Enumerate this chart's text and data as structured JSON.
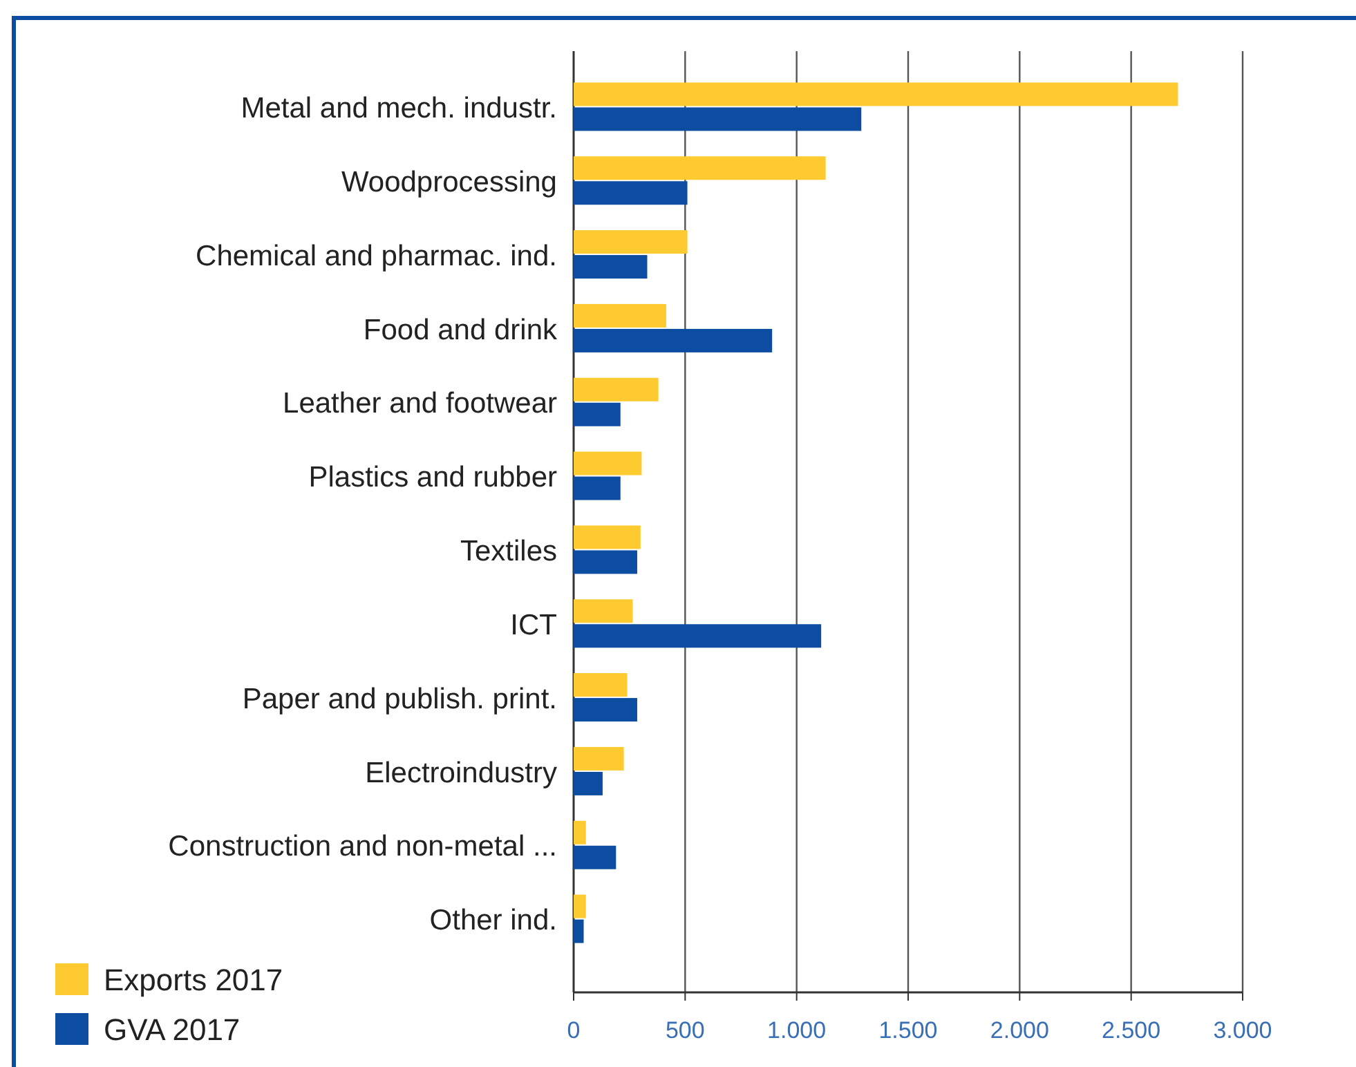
{
  "chart_data": {
    "type": "bar",
    "orientation": "horizontal",
    "categories": [
      "Metal and mech. industr.",
      "Woodprocessing",
      "Chemical and pharmac. ind.",
      "Food and drink",
      "Leather and footwear",
      "Plastics and rubber",
      "Textiles",
      "ICT",
      "Paper and publish. print.",
      "Electroindustry",
      "Construction and non-metal ...",
      "Other ind."
    ],
    "series": [
      {
        "name": "Exports 2017",
        "color": "#fdca2f",
        "values": [
          2710,
          1130,
          510,
          415,
          380,
          305,
          300,
          265,
          240,
          225,
          55,
          55
        ]
      },
      {
        "name": "GVA 2017",
        "color": "#0d4da1",
        "values": [
          1290,
          510,
          330,
          890,
          210,
          210,
          285,
          1110,
          285,
          130,
          190,
          45
        ]
      }
    ],
    "xlim": [
      0,
      3000
    ],
    "xticks": [
      0,
      500,
      {
        "value": 1000,
        "label": "1.000"
      },
      {
        "value": 1500,
        "label": "1.500"
      },
      {
        "value": 2000,
        "label": "2.000"
      },
      {
        "value": 2500,
        "label": "2.500"
      },
      {
        "value": 3000,
        "label": "3.000"
      }
    ],
    "grid": "x",
    "legend": "bottom left"
  }
}
